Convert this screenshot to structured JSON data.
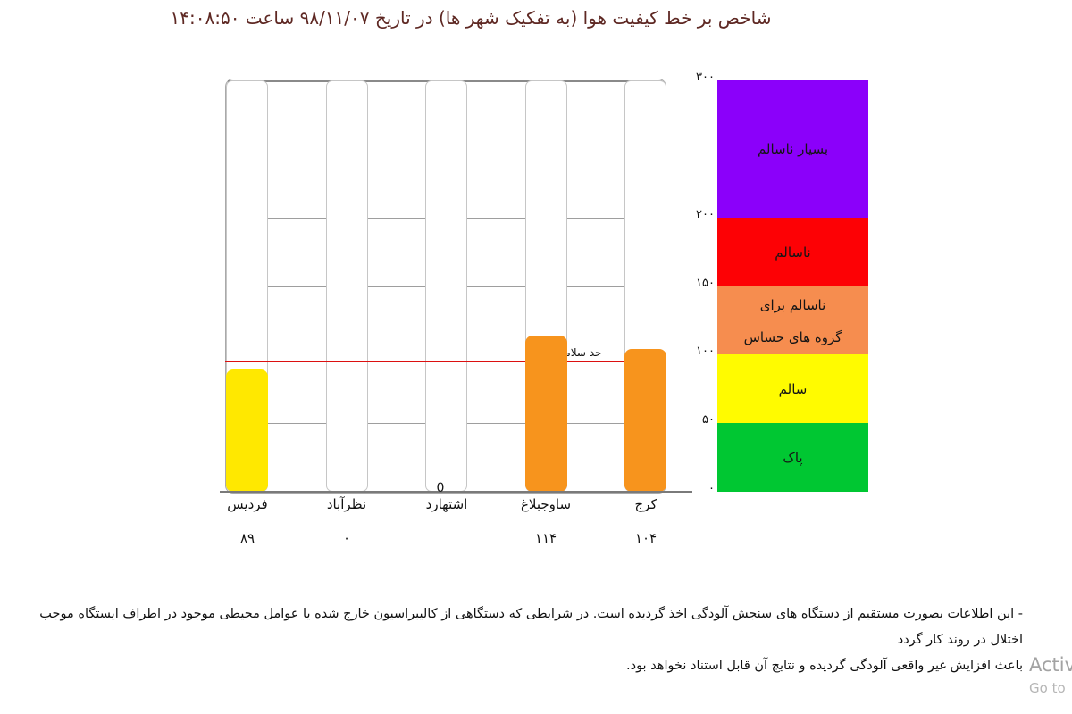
{
  "title": "شاخص بر خط کیفیت هوا (به تفکیک شهر ها) در تاریخ ۹۸/۱۱/۰۷  ساعت ۱۴:۰۸:۵۰",
  "title_color": "#5e2823",
  "chart_data": {
    "type": "bar",
    "title": "شاخص بر خط کیفیت هوا (به تفکیک شهر ها) در تاریخ ۹۸/۱۱/۰۷ ساعت ۱۴:۰۸:۵۰",
    "categories": [
      "فردیس",
      "نظرآباد",
      "اشتهارد",
      "ساوجبلاغ",
      "کرج"
    ],
    "values": [
      89,
      0,
      0,
      114,
      104
    ],
    "value_labels": [
      "۸۹",
      "۰",
      "0",
      "۱۱۴",
      "۱۰۴"
    ],
    "value_label_placement": [
      "below",
      "below",
      "on-axis",
      "below",
      "below"
    ],
    "bar_colors": [
      "#ffe800",
      null,
      null,
      "#f7941d",
      "#f7941d"
    ],
    "xlabel": "",
    "ylabel": "",
    "ylim": [
      0,
      300
    ],
    "yticks": [
      0,
      50,
      100,
      150,
      200,
      300
    ],
    "ytick_labels": [
      "۰",
      "۵۰",
      "۱۰۰",
      "۱۵۰",
      "۲۰۰",
      "۳۰۰"
    ],
    "gridline_values": [
      50,
      150,
      200,
      300
    ],
    "grid": true,
    "reference_line": {
      "value": 95,
      "label": "حد سلامت",
      "color": "#dc1010"
    },
    "legend_position": "right",
    "legend_bands": [
      {
        "from": 200,
        "to": 300,
        "color": "#8b00fa",
        "label_lines": [
          "بسیار ناسالم"
        ]
      },
      {
        "from": 150,
        "to": 200,
        "color": "#fd0105",
        "label_lines": [
          "ناسالم"
        ]
      },
      {
        "from": 100,
        "to": 150,
        "color": "#f68d4f",
        "label_lines": [
          "ناسالم برای",
          "گروه های حساس"
        ]
      },
      {
        "from": 50,
        "to": 100,
        "color": "#fffb00",
        "label_lines": [
          "سالم"
        ]
      },
      {
        "from": 0,
        "to": 50,
        "color": "#00c732",
        "label_lines": [
          "پاک"
        ]
      }
    ]
  },
  "footer": {
    "line1": "- این اطلاعات بصورت مستقیم از دستگاه های سنجش آلودگی اخذ گردیده است. در شرایطی که دستگاهی از کالیبراسیون خارج شده یا عوامل محیطی موجود در اطراف ایستگاه موجب اختلال در روند کار گردد",
    "line2": "باعث افزایش غیر واقعی آلودگی گردیده و نتایج آن قابل استناد نخواهد بود."
  },
  "watermark": {
    "line1": "Activ",
    "line2": "Go to"
  }
}
